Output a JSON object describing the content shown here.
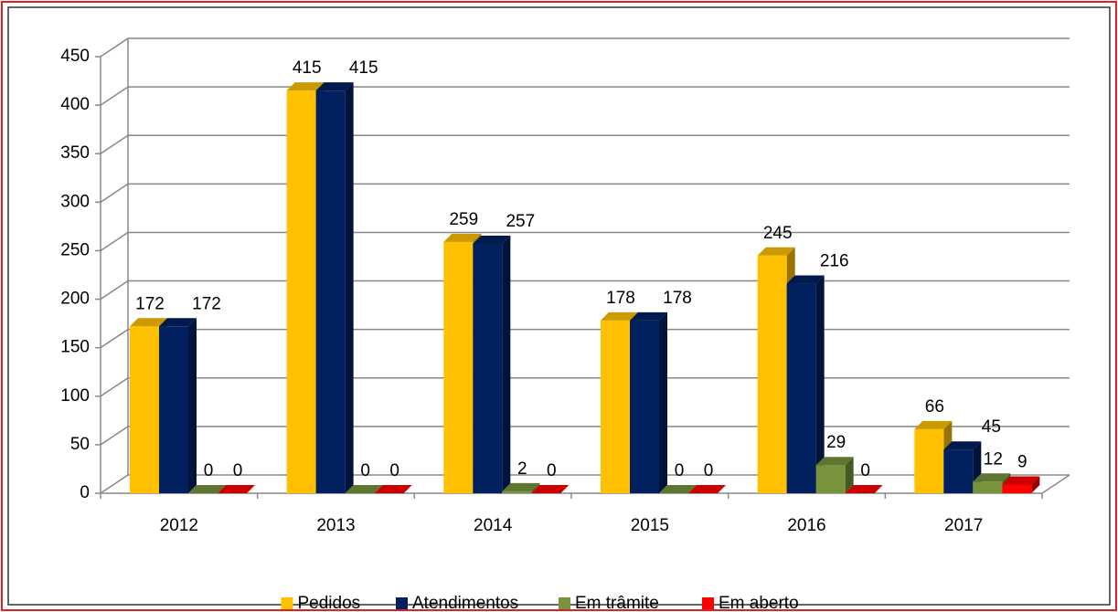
{
  "chart_data": {
    "type": "bar3d",
    "categories": [
      "2012",
      "2013",
      "2014",
      "2015",
      "2016",
      "2017"
    ],
    "series": [
      {
        "name": "Pedidos",
        "color": "#ffc000",
        "values": [
          172,
          415,
          259,
          178,
          245,
          66
        ]
      },
      {
        "name": "Atendimentos",
        "color": "#002060",
        "values": [
          172,
          415,
          257,
          178,
          216,
          45
        ]
      },
      {
        "name": "Em trâmite",
        "color": "#77933c",
        "values": [
          0,
          0,
          2,
          0,
          29,
          12
        ]
      },
      {
        "name": "Em aberto",
        "color": "#ff0000",
        "values": [
          0,
          0,
          0,
          0,
          0,
          9
        ]
      }
    ],
    "ylim": [
      0,
      450
    ],
    "yticks": [
      0,
      50,
      100,
      150,
      200,
      250,
      300,
      350,
      400,
      450
    ],
    "grid": true,
    "legend": "bottom"
  }
}
